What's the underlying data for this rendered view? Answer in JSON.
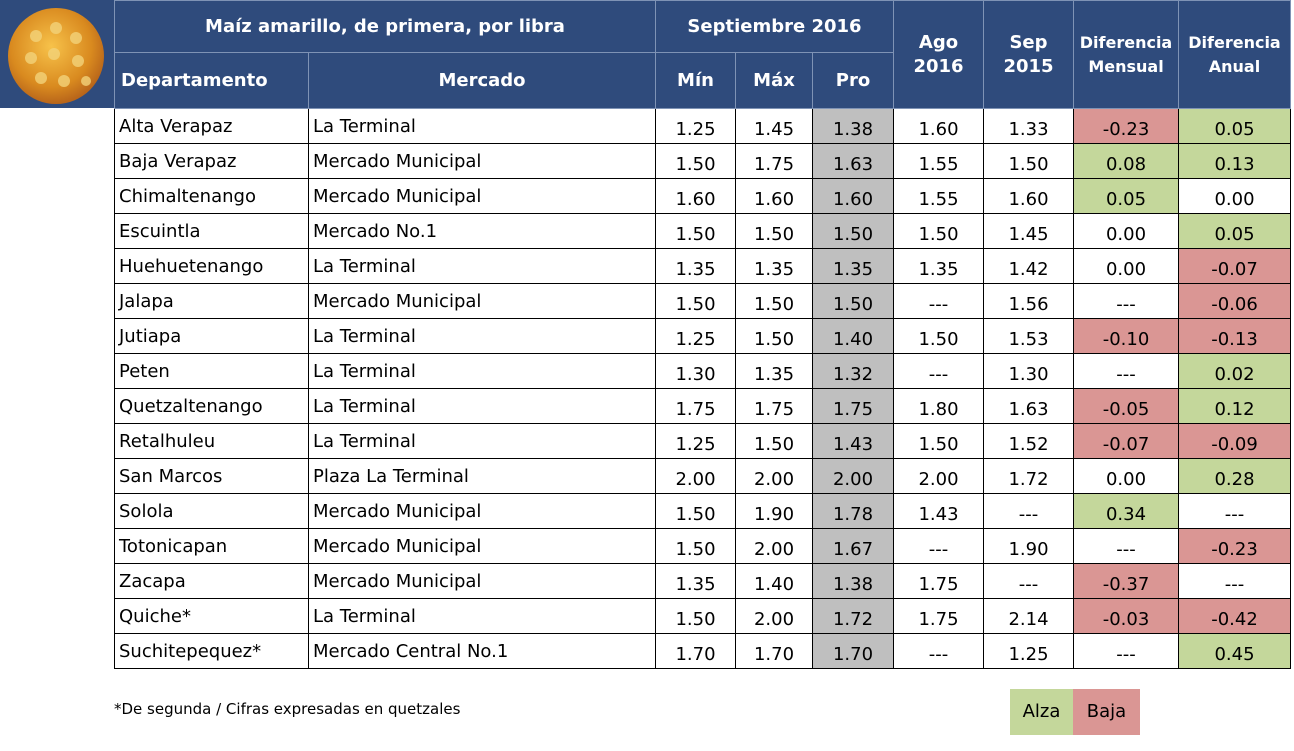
{
  "header": {
    "title": "Maíz amarillo, de primera, por libra",
    "period": "Septiembre 2016",
    "ago": [
      "Ago",
      "2016"
    ],
    "sep": [
      "Sep",
      "2015"
    ],
    "dif_mensual": [
      "Diferencia",
      "Mensual"
    ],
    "dif_anual": [
      "Diferencia",
      "Anual"
    ],
    "departamento": "Departamento",
    "mercado": "Mercado",
    "min": "Mín",
    "max": "Máx",
    "pro": "Pro"
  },
  "table": {
    "rows": [
      [
        "Alta Verapaz",
        "La Terminal",
        "1.25",
        "1.45",
        "1.38",
        "1.60",
        "1.33",
        "-0.23",
        "0.05"
      ],
      [
        "Baja Verapaz",
        "Mercado Municipal",
        "1.50",
        "1.75",
        "1.63",
        "1.55",
        "1.50",
        "0.08",
        "0.13"
      ],
      [
        "Chimaltenango",
        "Mercado Municipal",
        "1.60",
        "1.60",
        "1.60",
        "1.55",
        "1.60",
        "0.05",
        "0.00"
      ],
      [
        "Escuintla",
        "Mercado No.1",
        "1.50",
        "1.50",
        "1.50",
        "1.50",
        "1.45",
        "0.00",
        "0.05"
      ],
      [
        "Huehuetenango",
        "La Terminal",
        "1.35",
        "1.35",
        "1.35",
        "1.35",
        "1.42",
        "0.00",
        "-0.07"
      ],
      [
        "Jalapa",
        "Mercado Municipal",
        "1.50",
        "1.50",
        "1.50",
        "---",
        "1.56",
        "---",
        "-0.06"
      ],
      [
        "Jutiapa",
        "La Terminal",
        "1.25",
        "1.50",
        "1.40",
        "1.50",
        "1.53",
        "-0.10",
        "-0.13"
      ],
      [
        "Peten",
        "La Terminal",
        "1.30",
        "1.35",
        "1.32",
        "---",
        "1.30",
        "---",
        "0.02"
      ],
      [
        "Quetzaltenango",
        "La Terminal",
        "1.75",
        "1.75",
        "1.75",
        "1.80",
        "1.63",
        "-0.05",
        "0.12"
      ],
      [
        "Retalhuleu",
        "La Terminal",
        "1.25",
        "1.50",
        "1.43",
        "1.50",
        "1.52",
        "-0.07",
        "-0.09"
      ],
      [
        "San Marcos",
        "Plaza La Terminal",
        "2.00",
        "2.00",
        "2.00",
        "2.00",
        "1.72",
        "0.00",
        "0.28"
      ],
      [
        "Solola",
        "Mercado Municipal",
        "1.50",
        "1.90",
        "1.78",
        "1.43",
        "---",
        "0.34",
        "---"
      ],
      [
        "Totonicapan",
        "Mercado Municipal",
        "1.50",
        "2.00",
        "1.67",
        "---",
        "1.90",
        "---",
        "-0.23"
      ],
      [
        "Zacapa",
        "Mercado Municipal",
        "1.35",
        "1.40",
        "1.38",
        "1.75",
        "---",
        "-0.37",
        "---"
      ],
      [
        "Quiche*",
        "La Terminal",
        "1.50",
        "2.00",
        "1.72",
        "1.75",
        "2.14",
        "-0.03",
        "-0.42"
      ],
      [
        "Suchitepequez*",
        "Mercado Central No.1",
        "1.70",
        "1.70",
        "1.70",
        "---",
        "1.25",
        "---",
        "0.45"
      ]
    ]
  },
  "footnote": "*De segunda / Cifras expresadas en quetzales",
  "legend": {
    "alza": "Alza",
    "baja": "Baja"
  },
  "colors": {
    "header": "#2F4B7C",
    "pro": "#BFBFBF",
    "alza": "#C4D79B",
    "baja": "#DA9694"
  }
}
